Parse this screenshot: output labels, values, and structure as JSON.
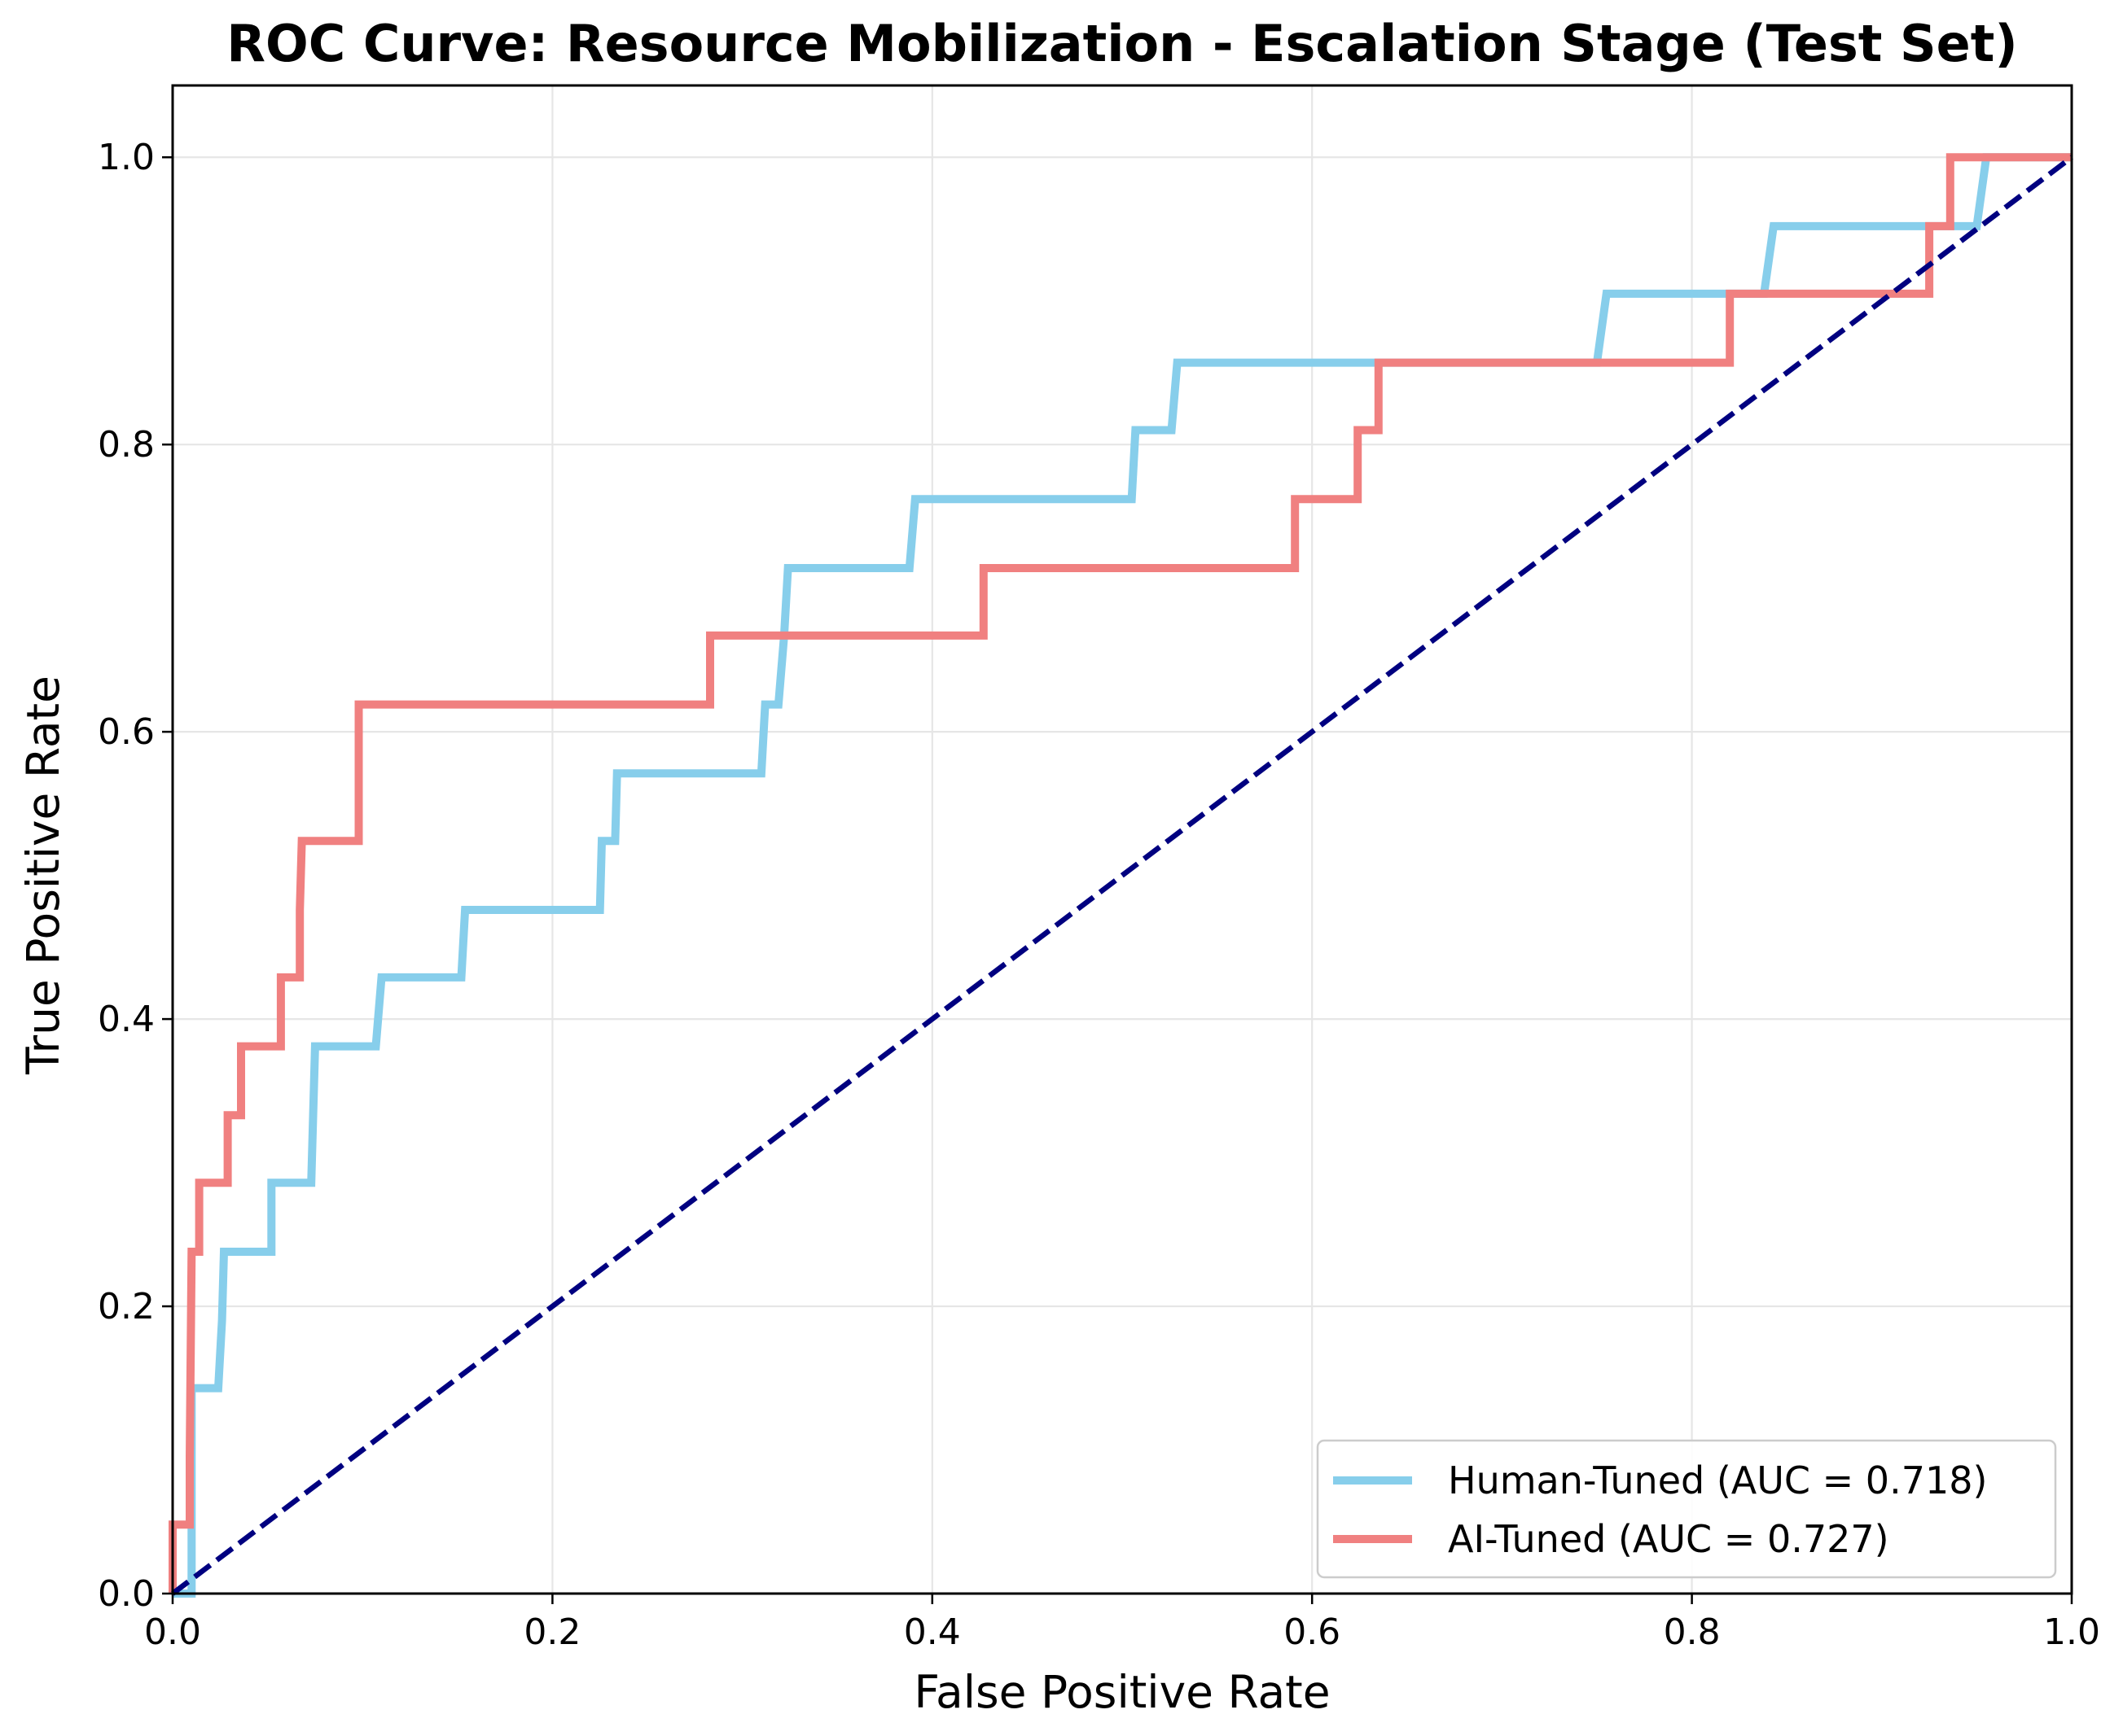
{
  "chart_data": {
    "type": "line",
    "title": "ROC Curve: Resource Mobilization - Escalation Stage (Test Set)",
    "xlabel": "False Positive Rate",
    "ylabel": "True Positive Rate",
    "xlim": [
      0.0,
      1.0
    ],
    "ylim": [
      0.0,
      1.05
    ],
    "xticks": [
      "0.0",
      "0.2",
      "0.4",
      "0.6",
      "0.8",
      "1.0"
    ],
    "yticks": [
      "0.0",
      "0.2",
      "0.4",
      "0.6",
      "0.8",
      "1.0"
    ],
    "grid": true,
    "legend_position": "lower-right",
    "series": [
      {
        "name": "Human-Tuned (AUC = 0.718)",
        "color": "#87CEEB",
        "points": [
          [
            0.0,
            0.0
          ],
          [
            0.01,
            0.0
          ],
          [
            0.01,
            0.143
          ],
          [
            0.024,
            0.143
          ],
          [
            0.026,
            0.19
          ],
          [
            0.027,
            0.238
          ],
          [
            0.052,
            0.238
          ],
          [
            0.052,
            0.286
          ],
          [
            0.073,
            0.286
          ],
          [
            0.075,
            0.381
          ],
          [
            0.107,
            0.381
          ],
          [
            0.11,
            0.429
          ],
          [
            0.152,
            0.429
          ],
          [
            0.154,
            0.476
          ],
          [
            0.225,
            0.476
          ],
          [
            0.226,
            0.524
          ],
          [
            0.233,
            0.524
          ],
          [
            0.234,
            0.571
          ],
          [
            0.31,
            0.571
          ],
          [
            0.312,
            0.619
          ],
          [
            0.319,
            0.619
          ],
          [
            0.322,
            0.667
          ],
          [
            0.324,
            0.714
          ],
          [
            0.388,
            0.714
          ],
          [
            0.391,
            0.762
          ],
          [
            0.505,
            0.762
          ],
          [
            0.507,
            0.81
          ],
          [
            0.526,
            0.81
          ],
          [
            0.529,
            0.857
          ],
          [
            0.75,
            0.857
          ],
          [
            0.755,
            0.905
          ],
          [
            0.838,
            0.905
          ],
          [
            0.843,
            0.952
          ],
          [
            0.95,
            0.952
          ],
          [
            0.955,
            1.0
          ],
          [
            1.0,
            1.0
          ]
        ]
      },
      {
        "name": "AI-Tuned (AUC = 0.727)",
        "color": "#F08080",
        "points": [
          [
            0.0,
            0.0
          ],
          [
            0.0,
            0.048
          ],
          [
            0.009,
            0.048
          ],
          [
            0.009,
            0.095
          ],
          [
            0.01,
            0.238
          ],
          [
            0.014,
            0.238
          ],
          [
            0.014,
            0.286
          ],
          [
            0.029,
            0.286
          ],
          [
            0.029,
            0.333
          ],
          [
            0.036,
            0.333
          ],
          [
            0.036,
            0.381
          ],
          [
            0.057,
            0.381
          ],
          [
            0.057,
            0.429
          ],
          [
            0.067,
            0.429
          ],
          [
            0.067,
            0.476
          ],
          [
            0.068,
            0.524
          ],
          [
            0.098,
            0.524
          ],
          [
            0.098,
            0.619
          ],
          [
            0.283,
            0.619
          ],
          [
            0.283,
            0.667
          ],
          [
            0.427,
            0.667
          ],
          [
            0.427,
            0.714
          ],
          [
            0.591,
            0.714
          ],
          [
            0.591,
            0.762
          ],
          [
            0.624,
            0.762
          ],
          [
            0.624,
            0.81
          ],
          [
            0.635,
            0.81
          ],
          [
            0.635,
            0.857
          ],
          [
            0.82,
            0.857
          ],
          [
            0.82,
            0.905
          ],
          [
            0.925,
            0.905
          ],
          [
            0.925,
            0.952
          ],
          [
            0.936,
            0.952
          ],
          [
            0.936,
            1.0
          ],
          [
            1.0,
            1.0
          ]
        ]
      }
    ],
    "reference_line": {
      "points": [
        [
          0.0,
          0.0
        ],
        [
          1.0,
          1.0
        ]
      ],
      "color": "#000080",
      "style": "dashed"
    }
  }
}
